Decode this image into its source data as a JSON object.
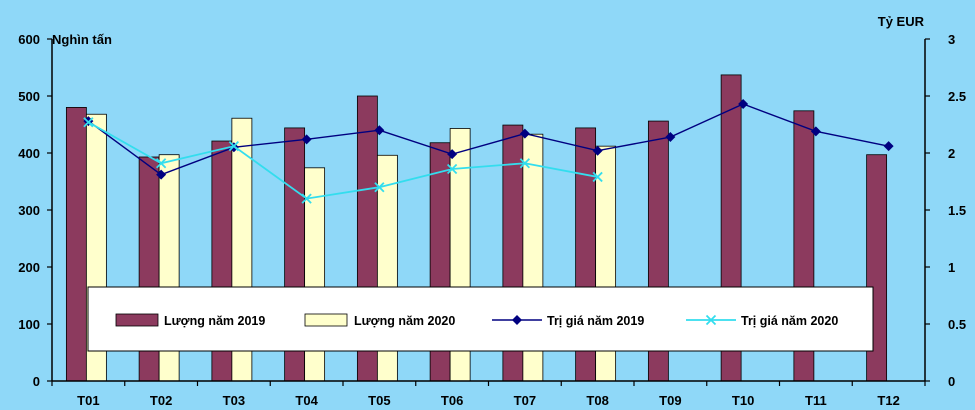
{
  "chart_data": {
    "type": "bar",
    "categories": [
      "T01",
      "T02",
      "T03",
      "T04",
      "T05",
      "T06",
      "T07",
      "T08",
      "T09",
      "T10",
      "T11",
      "T12"
    ],
    "y_left_label": "Nghìn tấn",
    "y_right_label": "Tỷ EUR",
    "y_left_range": [
      0,
      600
    ],
    "y_right_range": [
      0,
      3
    ],
    "y_left_ticks": [
      "0",
      "100",
      "200",
      "300",
      "400",
      "500",
      "600"
    ],
    "y_right_ticks": [
      "0",
      "0.5",
      "1",
      "1.5",
      "2",
      "2.5",
      "3"
    ],
    "bar_series": [
      {
        "name": "Lượng năm 2019",
        "color": "#8c3a5e",
        "values": [
          480,
          393,
          421,
          444,
          500,
          418,
          449,
          444,
          456,
          537,
          474,
          397
        ]
      },
      {
        "name": "Lượng năm 2020",
        "color": "#ffffcc",
        "values": [
          468,
          397,
          461,
          374,
          396,
          443,
          433,
          412,
          null,
          null,
          null,
          null
        ]
      }
    ],
    "line_series": [
      {
        "name": "Trị giá năm 2019",
        "color": "#000080",
        "marker": "diamond",
        "values": [
          2.28,
          1.81,
          2.05,
          2.12,
          2.2,
          1.99,
          2.17,
          2.02,
          2.14,
          2.43,
          2.19,
          2.06
        ]
      },
      {
        "name": "Trị giá năm 2020",
        "color": "#33ddee",
        "marker": "x",
        "values": [
          2.27,
          1.91,
          2.06,
          1.6,
          1.7,
          1.86,
          1.91,
          1.79,
          null,
          null,
          null,
          null
        ]
      }
    ],
    "legend_position": "bottom-inside",
    "grid": false
  }
}
